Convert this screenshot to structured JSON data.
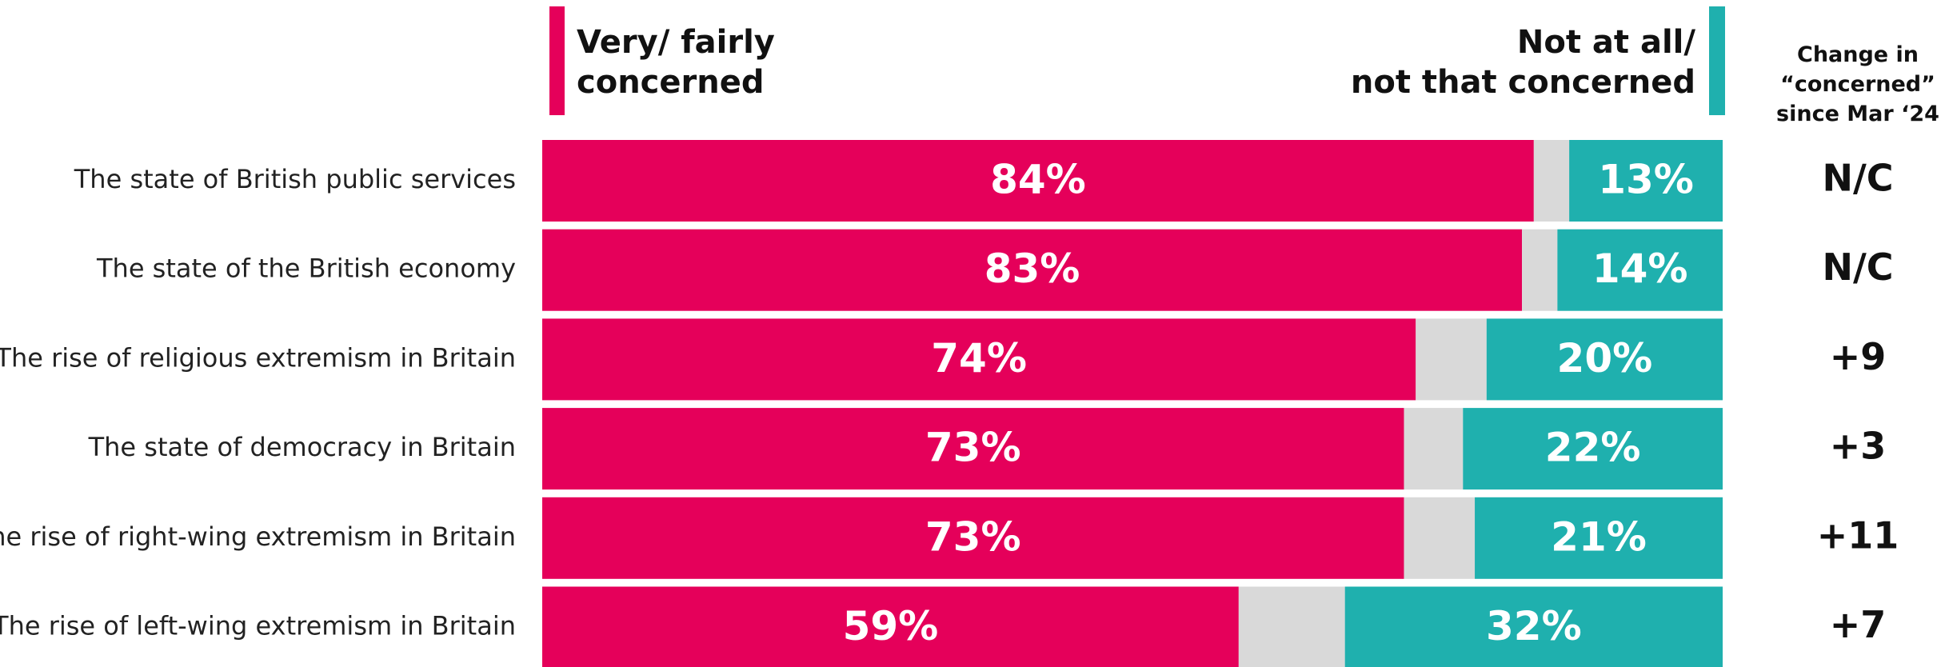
{
  "chart_data": {
    "type": "stacked-bar-horizontal",
    "categories": [
      "The state of British public services",
      "The state of the British economy",
      "The rise of religious extremism in Britain",
      "The state of democracy in Britain",
      "The rise of right-wing extremism in Britain",
      "The rise of left-wing extremism in Britain"
    ],
    "series": [
      {
        "name": "Very/ fairly\nconcerned",
        "color": "#e5005a",
        "values": [
          84,
          83,
          74,
          73,
          73,
          59
        ],
        "value_labels": [
          "84%",
          "83%",
          "74%",
          "73%",
          "73%",
          "59%"
        ]
      },
      {
        "color": "#d9d9d9",
        "values": [
          3,
          3,
          6,
          5,
          6,
          9
        ]
      },
      {
        "name": "Not at all/\nnot that concerned",
        "color": "#1fb0ae",
        "values": [
          13,
          14,
          20,
          22,
          21,
          32
        ],
        "value_labels": [
          "13%",
          "14%",
          "20%",
          "22%",
          "21%",
          "32%"
        ]
      }
    ],
    "xlim": [
      0,
      100
    ],
    "change_title": "Change in\n“concerned”\nsince Mar ‘24",
    "change": [
      "N/C",
      "N/C",
      "+9",
      "+3",
      "+11",
      "+7"
    ]
  }
}
